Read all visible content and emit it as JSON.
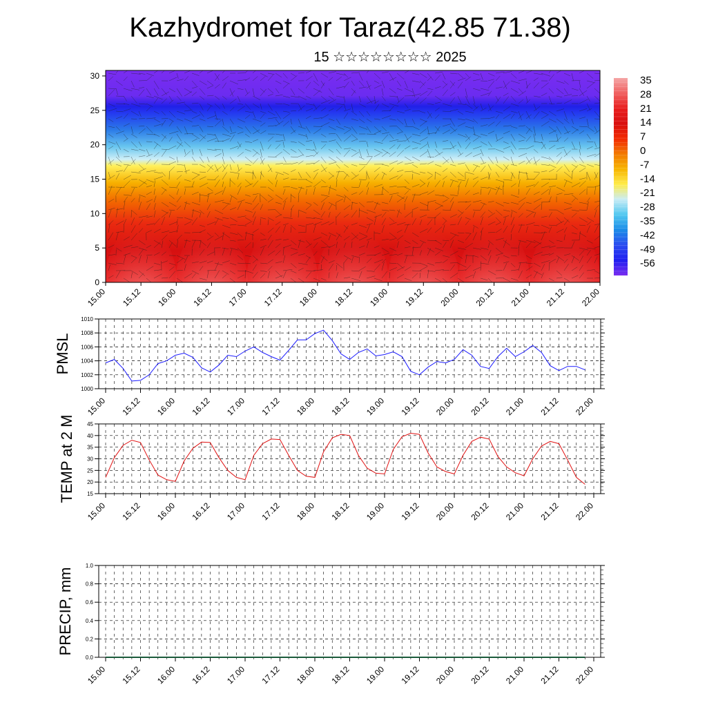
{
  "header": {
    "title": "Kazhydromet for Taraz(42.85 71.38)",
    "subtitle": "15 ☆☆☆☆☆☆☆☆ 2025"
  },
  "time_ticks": [
    "15.00",
    "15.12",
    "16.00",
    "16.12",
    "17.00",
    "17.12",
    "18.00",
    "18.12",
    "19.00",
    "19.12",
    "20.00",
    "20.12",
    "21.00",
    "21.12",
    "22.00"
  ],
  "colors": {
    "pmsl_line": "#1a1aff",
    "temp_line": "#e01010",
    "axis": "#000000"
  },
  "chart_data": [
    {
      "id": "cross_section",
      "type": "heatmap",
      "title": "",
      "xlabel": "",
      "ylabel": "",
      "x_categories": [
        "15.00",
        "15.12",
        "16.00",
        "16.12",
        "17.00",
        "17.12",
        "18.00",
        "18.12",
        "19.00",
        "19.12",
        "20.00",
        "20.12",
        "21.00",
        "21.12",
        "22.00"
      ],
      "yticks": [
        0,
        5,
        10,
        15,
        20,
        25,
        30
      ],
      "ylim": [
        0,
        30.8
      ],
      "overlay": "wind vector field",
      "colorbar": {
        "labels": [
          "35",
          "28",
          "21",
          "14",
          "7",
          "0",
          "-7",
          "-14",
          "-21",
          "-28",
          "-35",
          "-42",
          "-49",
          "-56"
        ],
        "colors": [
          "#f4a6a6",
          "#f06060",
          "#e81e1e",
          "#d91010",
          "#f22a00",
          "#f27a00",
          "#f7b500",
          "#ffec4a",
          "#c9ecf5",
          "#52c8f0",
          "#1b8ce8",
          "#2b4cf0",
          "#1f1ff0",
          "#7a2df0"
        ]
      }
    },
    {
      "id": "pmsl",
      "type": "line",
      "ylabel": "PMSL",
      "ylim": [
        1000,
        1010
      ],
      "yticks": [
        "1000",
        "1002",
        "1004",
        "1006",
        "1008",
        "1010"
      ],
      "x_hours": [
        0,
        3,
        6,
        9,
        12,
        15,
        18,
        21,
        24,
        27,
        30,
        33,
        36,
        39,
        42,
        45,
        48,
        51,
        54,
        57,
        60,
        63,
        66,
        69,
        72,
        75,
        78,
        81,
        84,
        87,
        90,
        93,
        96,
        99,
        102,
        105,
        108,
        111,
        114,
        117,
        120,
        123,
        126,
        129,
        132,
        135,
        138,
        141,
        144,
        147,
        150,
        153,
        156,
        159,
        162,
        165
      ],
      "values": [
        1003.7,
        1004.2,
        1002.9,
        1001.1,
        1001.2,
        1002.0,
        1003.6,
        1004.0,
        1004.8,
        1005.1,
        1004.5,
        1003.0,
        1002.4,
        1003.4,
        1004.8,
        1004.6,
        1005.4,
        1006.0,
        1005.2,
        1004.6,
        1004.1,
        1005.5,
        1007.0,
        1007.0,
        1007.9,
        1008.4,
        1006.9,
        1005.0,
        1004.2,
        1005.2,
        1005.7,
        1004.7,
        1004.9,
        1005.3,
        1004.6,
        1002.5,
        1002.0,
        1003.1,
        1003.9,
        1003.7,
        1004.2,
        1005.6,
        1004.8,
        1003.2,
        1002.9,
        1004.6,
        1005.8,
        1004.6,
        1005.3,
        1006.2,
        1005.2,
        1003.3,
        1002.6,
        1003.2,
        1003.2,
        1002.7
      ]
    },
    {
      "id": "temp",
      "type": "line",
      "ylabel": "TEMP at 2 M",
      "ylim": [
        15,
        45
      ],
      "yticks": [
        "15",
        "20",
        "25",
        "30",
        "35",
        "40",
        "45"
      ],
      "x_hours": [
        0,
        3,
        6,
        9,
        12,
        15,
        18,
        21,
        24,
        27,
        30,
        33,
        36,
        39,
        42,
        45,
        48,
        51,
        54,
        57,
        60,
        63,
        66,
        69,
        72,
        75,
        78,
        81,
        84,
        87,
        90,
        93,
        96,
        99,
        102,
        105,
        108,
        111,
        114,
        117,
        120,
        123,
        126,
        129,
        132,
        135,
        138,
        141,
        144,
        147,
        150,
        153,
        156,
        159,
        162,
        165
      ],
      "values": [
        22.0,
        30.5,
        35.8,
        38.0,
        37.0,
        29.5,
        23.0,
        21.0,
        20.3,
        29.0,
        34.5,
        37.2,
        37.0,
        30.5,
        25.0,
        22.0,
        21.0,
        31.5,
        36.5,
        38.5,
        38.3,
        31.5,
        25.0,
        22.5,
        22.0,
        33.0,
        39.0,
        40.5,
        40.0,
        31.5,
        26.0,
        23.8,
        23.5,
        34.0,
        39.5,
        41.0,
        40.5,
        32.5,
        26.5,
        24.5,
        23.5,
        31.5,
        37.5,
        39.3,
        38.5,
        31.0,
        26.5,
        24.0,
        22.7,
        30.0,
        35.5,
        37.5,
        36.5,
        29.5,
        22.0,
        19.0
      ]
    },
    {
      "id": "precip",
      "type": "line",
      "ylabel": "PRECIP, mm",
      "ylim": [
        0,
        1
      ],
      "yticks": [
        "0.0",
        "0.2",
        "0.4",
        "0.6",
        "0.8",
        "1.0"
      ],
      "x_hours": [
        0,
        165
      ],
      "values": [
        0,
        0
      ]
    }
  ]
}
